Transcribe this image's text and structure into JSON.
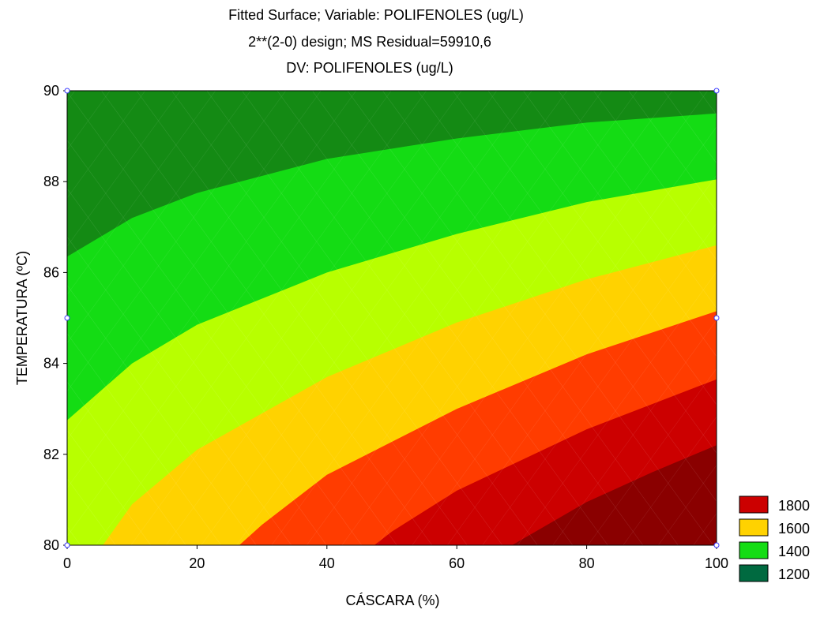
{
  "chart_data": {
    "type": "contour",
    "title_lines": [
      "Fitted Surface; Variable: POLIFENOLES (ug/L)",
      "2**(2-0) design; MS Residual=59910,6",
      "DV: POLIFENOLES (ug/L)"
    ],
    "xlabel": "CÁSCARA (%)",
    "ylabel": "TEMPERATURA (ºC)",
    "xlim": [
      0,
      100
    ],
    "ylim": [
      80,
      90
    ],
    "x_ticks": [
      "0",
      "20",
      "40",
      "60",
      "80",
      "100"
    ],
    "y_ticks": [
      "80",
      "82",
      "84",
      "86",
      "88",
      "90"
    ],
    "design_points": [
      {
        "x": 0,
        "y": 80
      },
      {
        "x": 0,
        "y": 85
      },
      {
        "x": 0,
        "y": 90
      },
      {
        "x": 100,
        "y": 80
      },
      {
        "x": 100,
        "y": 85
      },
      {
        "x": 100,
        "y": 90
      }
    ],
    "contour_boundaries": [
      {
        "points": [
          [
            0,
            86.35
          ],
          [
            10,
            87.2
          ],
          [
            20,
            87.75
          ],
          [
            40,
            88.5
          ],
          [
            60,
            88.95
          ],
          [
            80,
            89.3
          ],
          [
            100,
            89.5
          ]
        ]
      },
      {
        "points": [
          [
            0,
            82.75
          ],
          [
            10,
            84.0
          ],
          [
            20,
            84.85
          ],
          [
            40,
            86.0
          ],
          [
            60,
            86.85
          ],
          [
            80,
            87.55
          ],
          [
            100,
            88.05
          ]
        ]
      },
      {
        "points": [
          [
            5.5,
            80
          ],
          [
            10,
            80.9
          ],
          [
            20,
            82.1
          ],
          [
            40,
            83.7
          ],
          [
            60,
            84.9
          ],
          [
            80,
            85.85
          ],
          [
            100,
            86.6
          ]
        ]
      },
      {
        "points": [
          [
            26.5,
            80
          ],
          [
            30,
            80.45
          ],
          [
            40,
            81.55
          ],
          [
            60,
            83.0
          ],
          [
            80,
            84.2
          ],
          [
            100,
            85.15
          ]
        ]
      },
      {
        "points": [
          [
            47.3,
            80
          ],
          [
            50,
            80.3
          ],
          [
            60,
            81.2
          ],
          [
            80,
            82.55
          ],
          [
            100,
            83.65
          ]
        ]
      },
      {
        "points": [
          [
            68.5,
            80
          ],
          [
            80,
            80.95
          ],
          [
            90,
            81.6
          ],
          [
            100,
            82.2
          ]
        ]
      }
    ],
    "band_colors": [
      "#148a14",
      "#14dc14",
      "#b8ff00",
      "#ffd200",
      "#ff3c00",
      "#cc0000",
      "#8a0000"
    ],
    "legend": [
      {
        "label": "1800",
        "color": "#cc0000"
      },
      {
        "label": "1600",
        "color": "#ffd200"
      },
      {
        "label": "1400",
        "color": "#14dc14"
      },
      {
        "label": "1200",
        "color": "#006a40"
      }
    ]
  }
}
